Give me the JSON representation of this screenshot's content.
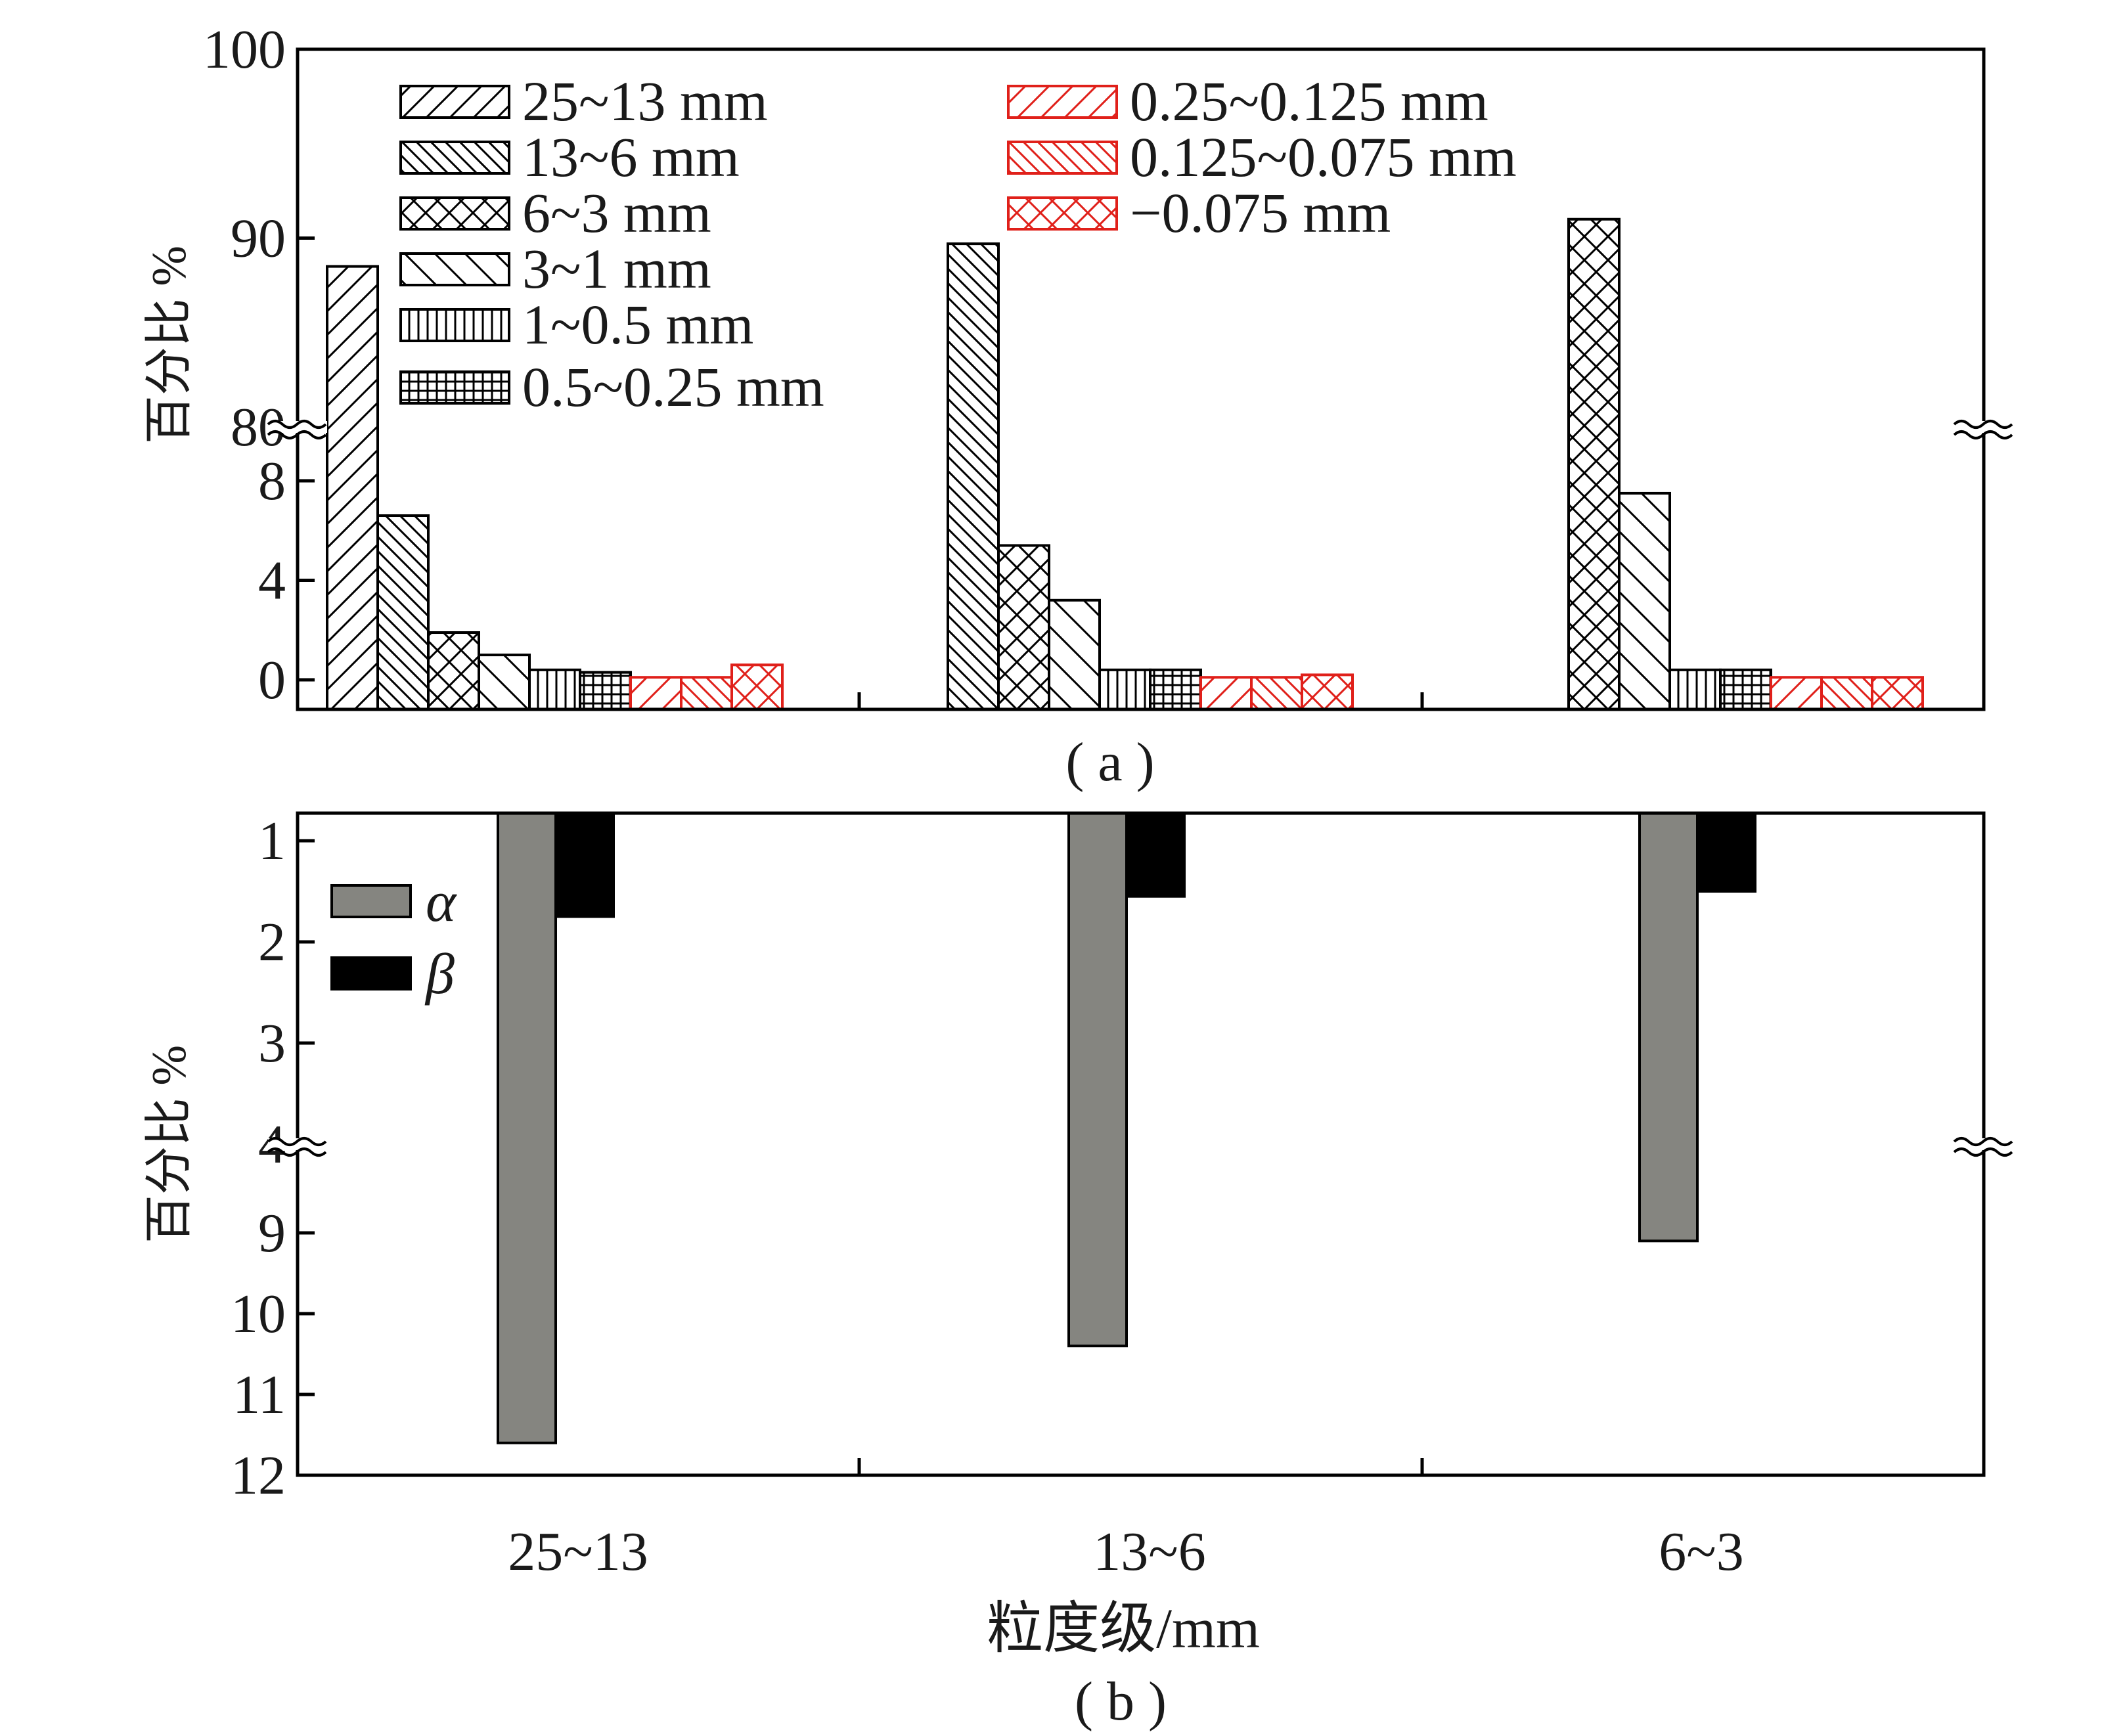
{
  "chart_data": [
    {
      "type": "bar",
      "panel_label": "( a )",
      "ylabel": "百分比 %",
      "categories": [
        "25~13",
        "13~6",
        "6~3"
      ],
      "axis_break": {
        "lower_range": [
          0,
          8
        ],
        "upper_range": [
          80,
          100
        ]
      },
      "y_ticks": [
        0,
        4,
        8,
        80,
        90,
        100
      ],
      "legend_placement": "top-left, two columns",
      "series": [
        {
          "name": "25~13 mm",
          "color": "#000000",
          "pattern": "diag-right",
          "values": [
            88.5,
            null,
            null
          ]
        },
        {
          "name": "13~6 mm",
          "color": "#000000",
          "pattern": "diag-left",
          "values": [
            6.6,
            89.7,
            null
          ]
        },
        {
          "name": "6~3 mm",
          "color": "#000000",
          "pattern": "cross",
          "values": [
            1.9,
            5.4,
            91.0
          ]
        },
        {
          "name": "3~1 mm",
          "color": "#000000",
          "pattern": "diag-left-sparse",
          "values": [
            1.0,
            3.2,
            7.5
          ]
        },
        {
          "name": "1~0.5 mm",
          "color": "#000000",
          "pattern": "vertical",
          "values": [
            0.4,
            0.4,
            0.4
          ]
        },
        {
          "name": "0.5~0.25 mm",
          "color": "#000000",
          "pattern": "grid",
          "values": [
            0.3,
            0.4,
            0.4
          ]
        },
        {
          "name": "0.25~0.125 mm",
          "color": "#e0201a",
          "pattern": "diag-right",
          "values": [
            0.1,
            0.1,
            0.1
          ]
        },
        {
          "name": "0.125~0.075 mm",
          "color": "#e0201a",
          "pattern": "diag-left",
          "values": [
            0.1,
            0.1,
            0.1
          ]
        },
        {
          "name": "−0.075 mm",
          "color": "#e0201a",
          "pattern": "cross",
          "values": [
            0.6,
            0.2,
            0.1
          ]
        }
      ]
    },
    {
      "type": "bar",
      "panel_label": "( b )",
      "ylabel": "百分比 %",
      "xlabel": "粒度级/mm",
      "categories": [
        "25~13",
        "13~6",
        "6~3"
      ],
      "y_inverted": true,
      "axis_break": {
        "upper_range": [
          1,
          4
        ],
        "lower_range": [
          8.5,
          12
        ]
      },
      "y_ticks": [
        1,
        2,
        3,
        4,
        9,
        10,
        11,
        12
      ],
      "legend_placement": "top-left",
      "series": [
        {
          "name": "α",
          "color": "#858580",
          "values": [
            11.6,
            10.4,
            9.1
          ]
        },
        {
          "name": "β",
          "color": "#000000",
          "values": [
            1.75,
            1.55,
            1.5
          ]
        }
      ]
    }
  ]
}
